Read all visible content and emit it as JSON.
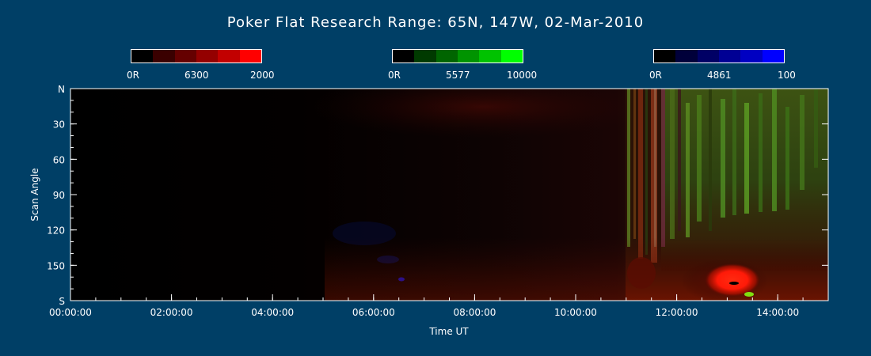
{
  "chart_data": {
    "type": "heatmap",
    "title": "Poker Flat Research Range: 65N, 147W, 02-Mar-2010",
    "xlabel": "Time UT",
    "ylabel": "Scan Angle",
    "x_range": [
      "00:00:00",
      "15:00:00"
    ],
    "y_range": [
      0,
      180
    ],
    "x_ticks": [
      "00:00:00",
      "02:00:00",
      "04:00:00",
      "06:00:00",
      "08:00:00",
      "10:00:00",
      "12:00:00",
      "14:00:00"
    ],
    "y_ticks": [
      "N",
      "30",
      "60",
      "90",
      "120",
      "150",
      "S"
    ],
    "colorbars": [
      {
        "channel": "6300",
        "min_label": "0R",
        "mid_label": "6300",
        "max_label": "2000",
        "colors": [
          "#000000",
          "#3a0000",
          "#650000",
          "#940000",
          "#c20000",
          "#ff0000"
        ]
      },
      {
        "channel": "5577",
        "min_label": "0R",
        "mid_label": "5577",
        "max_label": "10000",
        "colors": [
          "#000000",
          "#003a00",
          "#006500",
          "#009400",
          "#00c200",
          "#00ff00"
        ]
      },
      {
        "channel": "4861",
        "min_label": "0R",
        "mid_label": "4861",
        "max_label": "100",
        "colors": [
          "#000000",
          "#00003a",
          "#000065",
          "#000094",
          "#0000c2",
          "#0000ff"
        ]
      }
    ]
  }
}
